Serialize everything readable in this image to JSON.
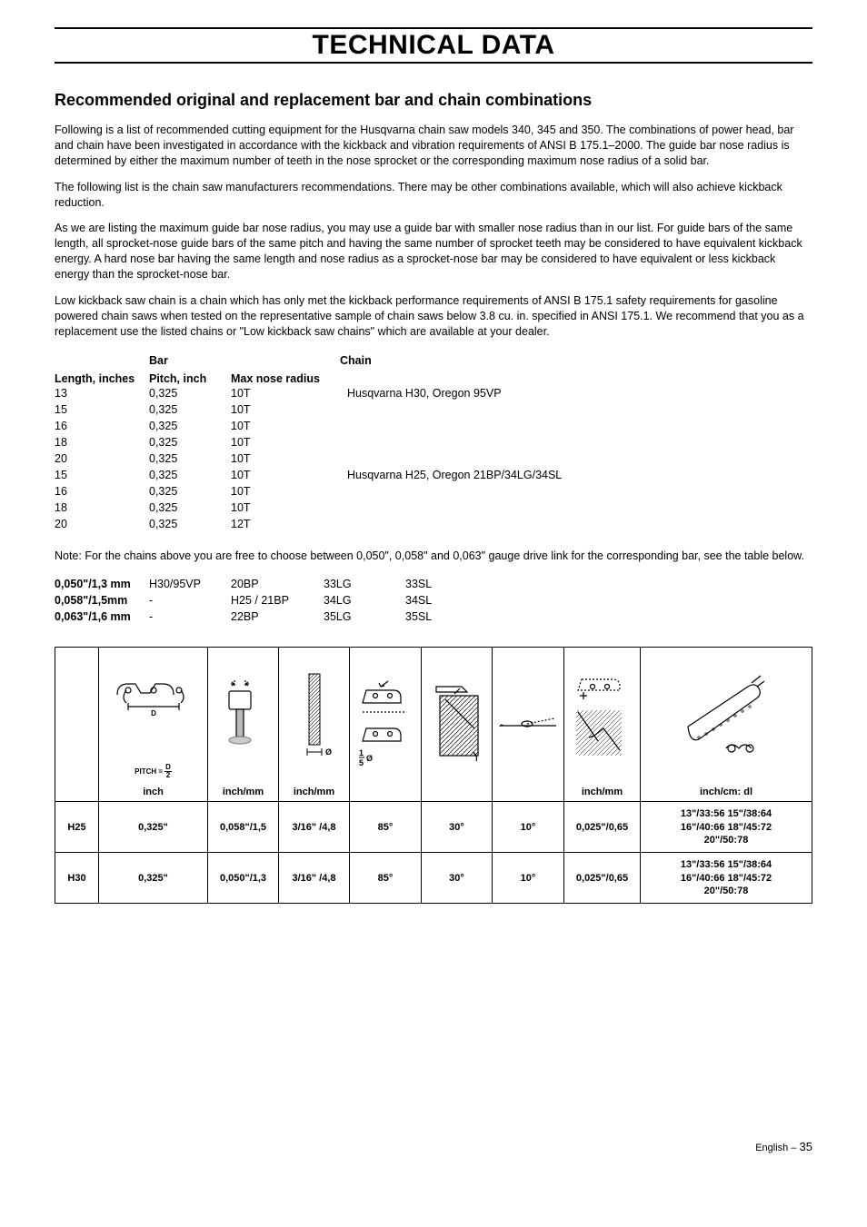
{
  "banner": "TECHNICAL DATA",
  "section_title": "Recommended original and replacement bar and chain combinations",
  "paragraphs": [
    "Following is a list of recommended cutting equipment for the Husqvarna chain saw models 340, 345 and 350. The combinations of power head, bar and chain have been investigated in accordance with the kickback and vibration requirements of ANSI B 175.1–2000. The guide bar nose radius is determined by either the maximum number of teeth in the nose sprocket or the corresponding maximum nose radius of a solid bar.",
    "The following list is the chain saw manufacturers recommendations. There may be other combinations available, which will also achieve kickback reduction.",
    "As we are listing the maximum guide bar nose radius, you may use a guide bar with smaller nose radius than in our list. For guide bars of the same length, all sprocket-nose guide bars of the same pitch and having the same number of sprocket teeth may be considered to have equivalent kickback energy. A hard nose bar having the same length and nose radius as a sprocket-nose bar may be considered to have equivalent or less kickback energy than the sprocket-nose bar.",
    "Low kickback saw chain is a chain which has only met the kickback performance requirements of ANSI B 175.1 safety requirements for gasoline powered chain saws when tested on the representative sample of chain saws below 3.8 cu. in. specified in ANSI 175.1. We recommend that you as a replacement use the listed chains or \"Low kickback saw chains\" which are available at your dealer."
  ],
  "bar_chain": {
    "bar_label": "Bar",
    "chain_label": "Chain",
    "length_label": "Length, inches",
    "pitch_label": "Pitch, inch",
    "nose_label": "Max nose radius",
    "rows": [
      {
        "len": "13",
        "pitch": "0,325",
        "nose": "10T",
        "chain": "Husqvarna H30, Oregon 95VP"
      },
      {
        "len": "15",
        "pitch": "0,325",
        "nose": "10T",
        "chain": ""
      },
      {
        "len": "16",
        "pitch": "0,325",
        "nose": "10T",
        "chain": ""
      },
      {
        "len": "18",
        "pitch": "0,325",
        "nose": "10T",
        "chain": ""
      },
      {
        "len": "20",
        "pitch": "0,325",
        "nose": "10T",
        "chain": ""
      },
      {
        "len": "15",
        "pitch": "0,325",
        "nose": "10T",
        "chain": "Husqvarna H25, Oregon 21BP/34LG/34SL"
      },
      {
        "len": "16",
        "pitch": "0,325",
        "nose": "10T",
        "chain": ""
      },
      {
        "len": "18",
        "pitch": "0,325",
        "nose": "10T",
        "chain": ""
      },
      {
        "len": "20",
        "pitch": "0,325",
        "nose": "12T",
        "chain": ""
      }
    ]
  },
  "note": "Note: For the chains above you are free to choose between 0,050\", 0,058\" and 0,063\" gauge drive link for the corresponding bar, see the table below.",
  "gauge_rows": [
    {
      "g": "0,050\"/1,3 mm",
      "a": "H30/95VP",
      "b": "20BP",
      "c": "33LG",
      "d": "33SL"
    },
    {
      "g": "0,058\"/1,5mm",
      "a": "-",
      "b": "H25 / 21BP",
      "c": "34LG",
      "d": "34SL"
    },
    {
      "g": "0,063\"/1,6 mm",
      "a": "-",
      "b": "22BP",
      "c": "35LG",
      "d": "35SL"
    }
  ],
  "spec_table": {
    "header_units": [
      "",
      "inch",
      "inch/mm",
      "inch/mm",
      "",
      "",
      "",
      "inch/mm",
      "inch/cm: dl"
    ],
    "rows": [
      {
        "label": "H25",
        "pitch": "0,325\"",
        "gauge": "0,058\"/1,5",
        "file": "3/16\" /4,8",
        "a1": "85°",
        "a2": "30°",
        "a3": "10°",
        "depth": "0,025\"/0,65",
        "dl": "13\"/33:56 15\"/38:64\n16\"/40:66 18\"/45:72\n20\"/50:78"
      },
      {
        "label": "H30",
        "pitch": "0,325\"",
        "gauge": "0,050\"/1,3",
        "file": "3/16\" /4,8",
        "a1": "85°",
        "a2": "30°",
        "a3": "10°",
        "depth": "0,025\"/0,65",
        "dl": "13\"/33:56 15\"/38:64\n16\"/40:66 18\"/45:72\n20\"/50:78"
      }
    ]
  },
  "footer": {
    "lang": "English",
    "sep": "–",
    "page": "35"
  },
  "pitch_formula": "PITCH = ",
  "diameter_formula_top": "1",
  "diameter_formula_bot": "5"
}
